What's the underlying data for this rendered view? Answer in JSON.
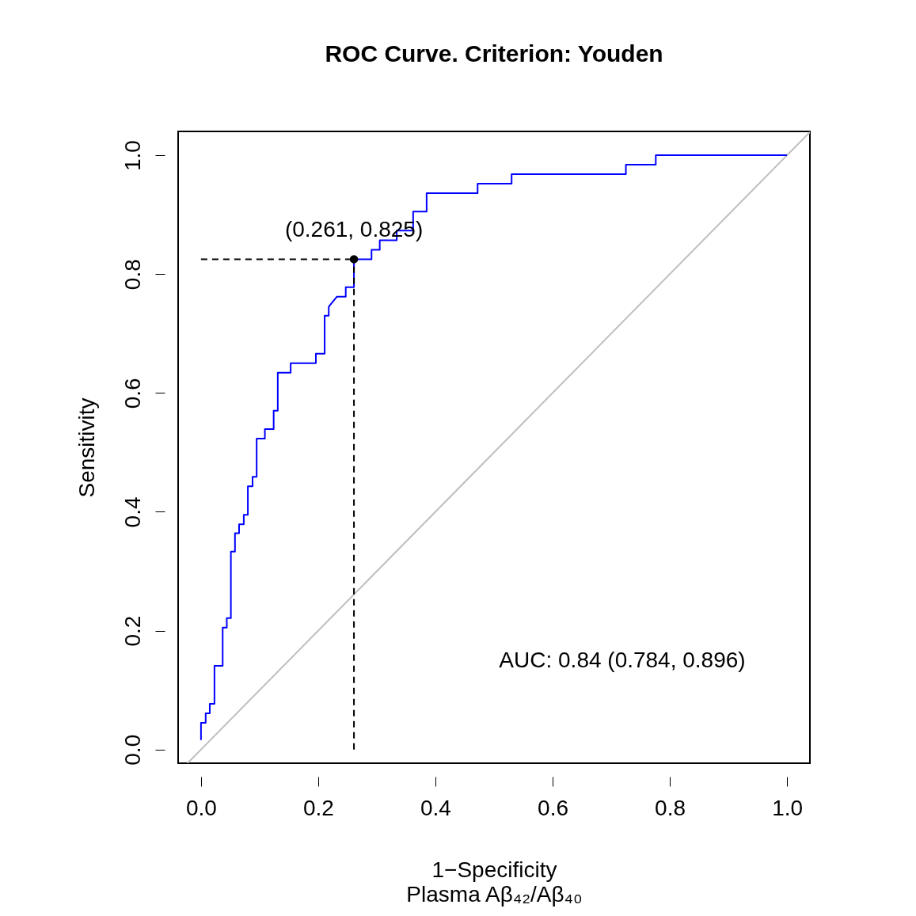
{
  "chart_data": {
    "type": "line",
    "title": "ROC Curve. Criterion: Youden",
    "xlabel": "1−Specificity\nPlasma Aβ₄₂/Aβ₄₀",
    "ylabel": "Sensitivity",
    "xlim": [
      -0.039,
      1.039
    ],
    "ylim": [
      -0.023,
      1.04
    ],
    "xticks": [
      {
        "value": 0,
        "label": "0.0"
      },
      0.2,
      0.4,
      0.6,
      0.8,
      {
        "value": 1,
        "label": "1.0"
      }
    ],
    "yticks": [
      {
        "value": 0,
        "label": "0.0"
      },
      0.2,
      0.4,
      0.6,
      0.8,
      {
        "value": 1,
        "label": "1.0"
      }
    ],
    "grid": false,
    "series": [
      {
        "color": "#bebebe",
        "line_style": "solid",
        "x": [
          -0.023,
          1.039
        ],
        "values": [
          -0.023,
          1.039
        ]
      },
      {
        "color": "#0000ff",
        "line_style": "solid",
        "x": [
          0,
          0,
          0.008,
          0.008,
          0.015,
          0.015,
          0.023,
          0.023,
          0.037,
          0.037,
          0.044,
          0.044,
          0.051,
          0.051,
          0.058,
          0.058,
          0.065,
          0.065,
          0.073,
          0.073,
          0.08,
          0.08,
          0.088,
          0.088,
          0.095,
          0.095,
          0.109,
          0.109,
          0.124,
          0.124,
          0.131,
          0.131,
          0.153,
          0.153,
          0.196,
          0.196,
          0.211,
          0.211,
          0.218,
          0.218,
          0.232,
          0.247,
          0.247,
          0.261,
          0.261,
          0.291,
          0.291,
          0.305,
          0.305,
          0.334,
          0.334,
          0.362,
          0.362,
          0.385,
          0.385,
          0.472,
          0.472,
          0.53,
          0.53,
          0.725,
          0.725,
          0.776,
          0.776,
          1
        ],
        "values": [
          0.016,
          0.045,
          0.045,
          0.061,
          0.061,
          0.077,
          0.077,
          0.141,
          0.141,
          0.205,
          0.205,
          0.221,
          0.221,
          0.333,
          0.333,
          0.364,
          0.364,
          0.379,
          0.379,
          0.395,
          0.395,
          0.443,
          0.443,
          0.459,
          0.459,
          0.523,
          0.523,
          0.539,
          0.539,
          0.57,
          0.57,
          0.634,
          0.634,
          0.65,
          0.65,
          0.666,
          0.666,
          0.73,
          0.73,
          0.745,
          0.762,
          0.762,
          0.778,
          0.778,
          0.825,
          0.825,
          0.841,
          0.841,
          0.857,
          0.857,
          0.873,
          0.873,
          0.905,
          0.905,
          0.936,
          0.936,
          0.952,
          0.952,
          0.968,
          0.968,
          0.984,
          0.984,
          1,
          1
        ]
      },
      {
        "type": "line",
        "color": "#000000",
        "line_style": "dashed",
        "x": [
          0,
          0.261
        ],
        "values": [
          0.825,
          0.825
        ]
      },
      {
        "type": "line",
        "color": "#000000",
        "line_style": "dashed",
        "x": [
          0.261,
          0.261
        ],
        "values": [
          0,
          0.825
        ]
      },
      {
        "type": "scatter",
        "color": "#000000",
        "marker": "circle",
        "x": [
          0.261
        ],
        "values": [
          0.825
        ]
      }
    ],
    "annotations": [
      {
        "text": "(0.261, 0.825)",
        "x": 0.261,
        "y": 0.825
      },
      "AUC: 0.84 (0.784, 0.896)"
    ]
  }
}
